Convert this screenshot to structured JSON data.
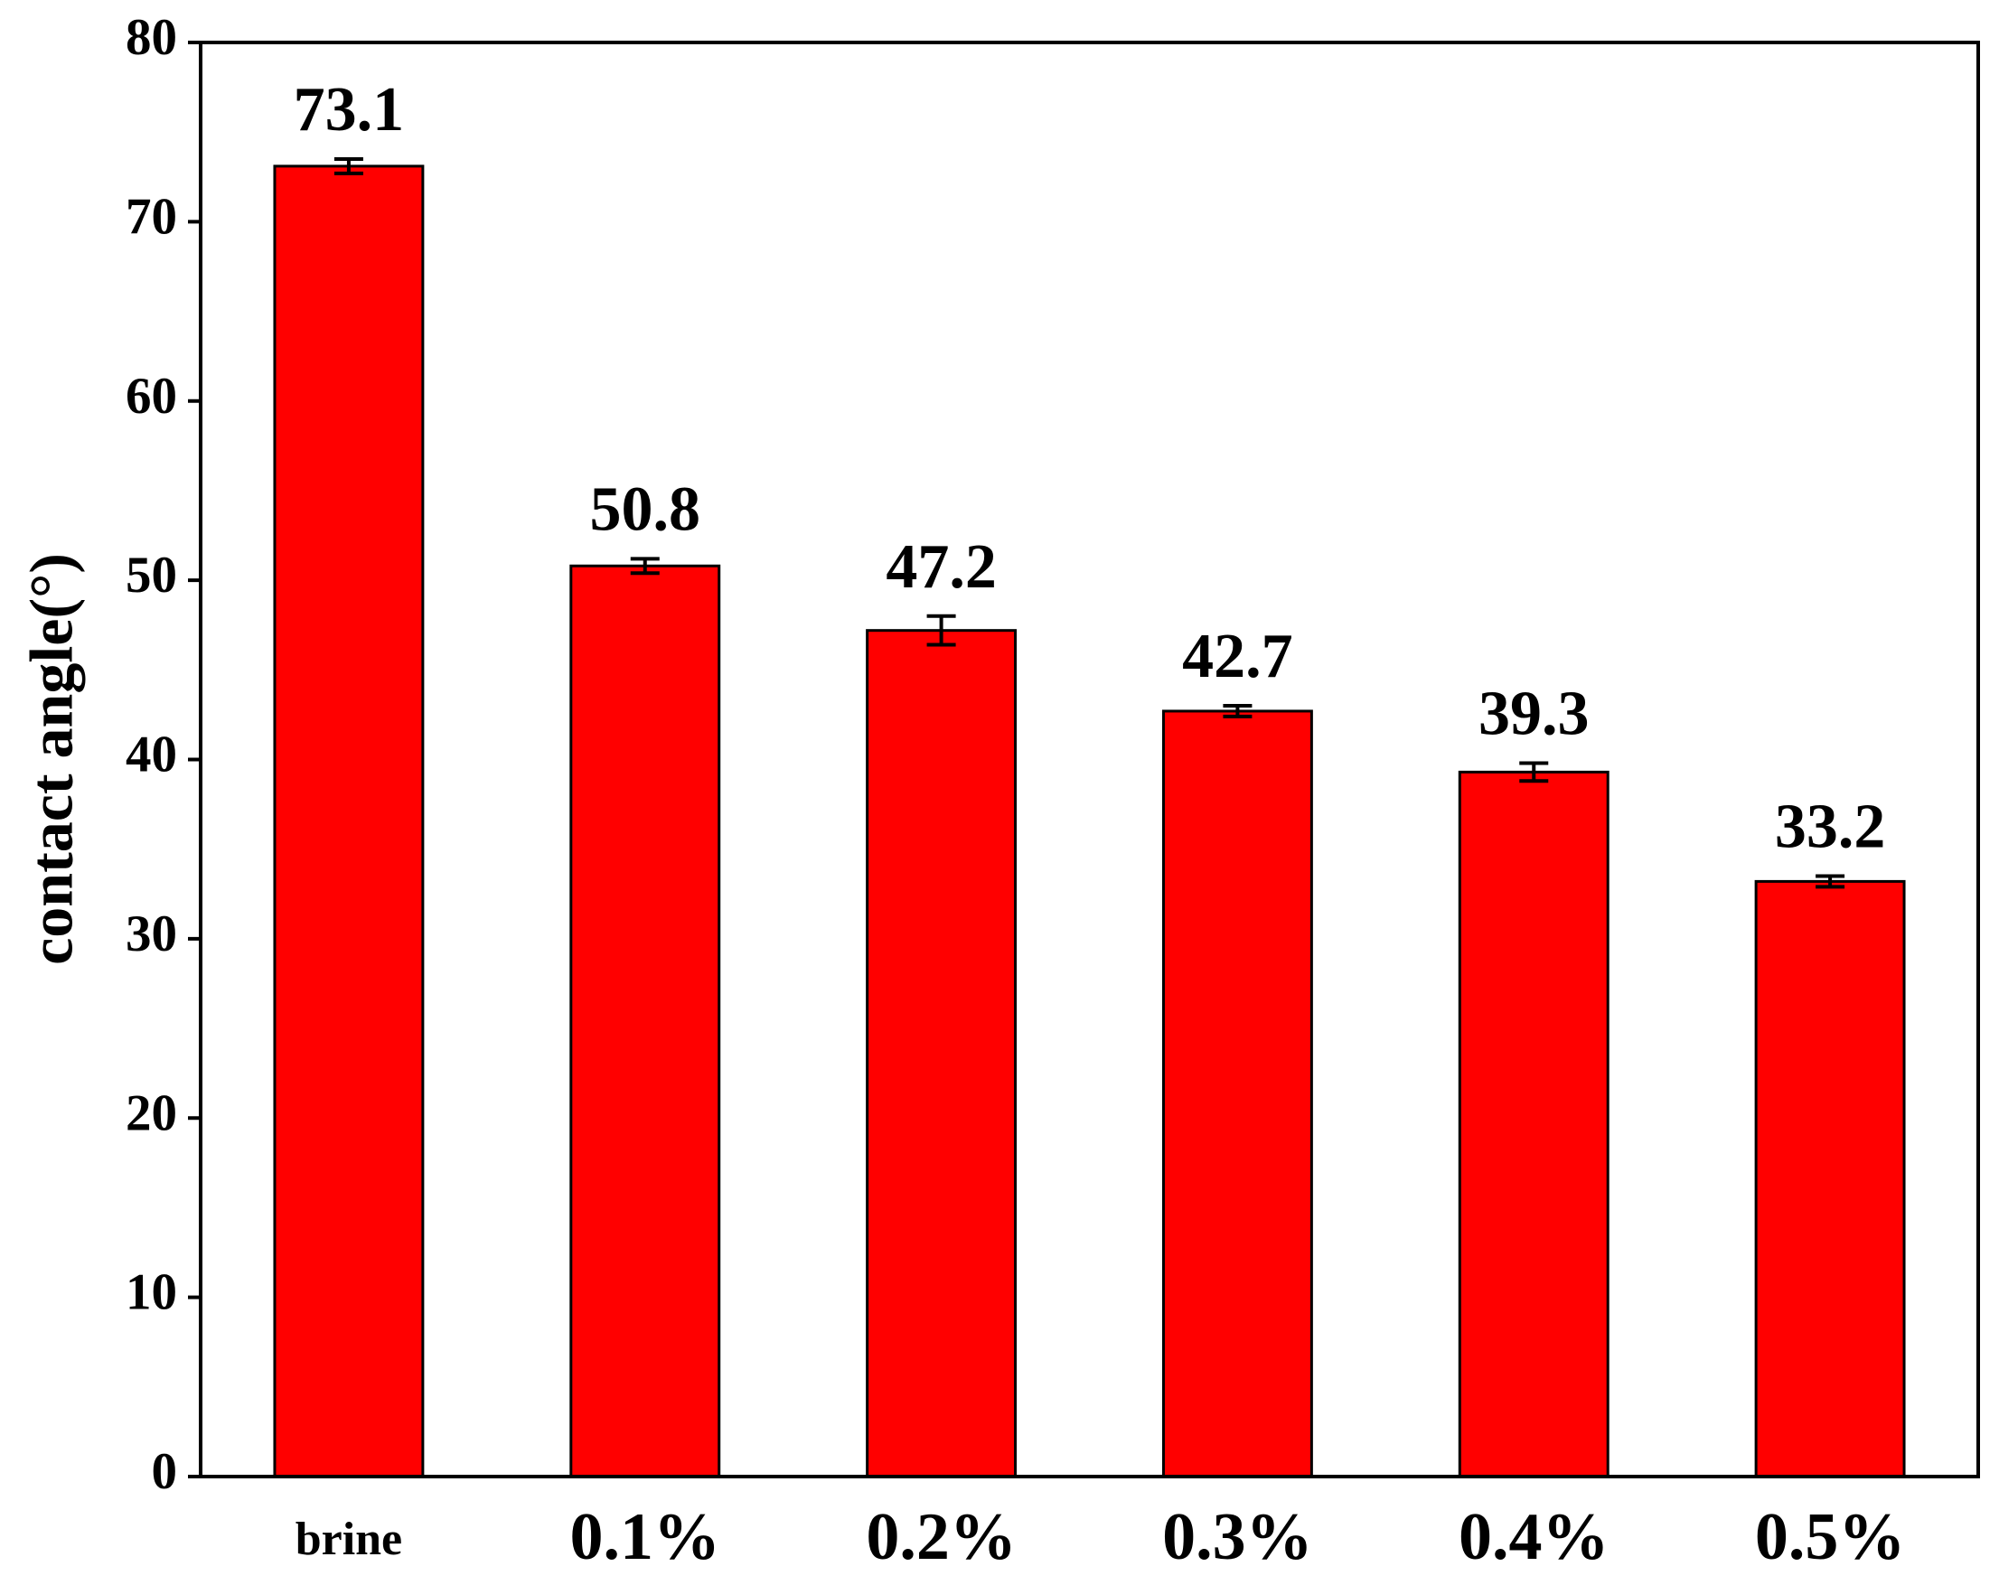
{
  "chart_data": {
    "type": "bar",
    "y_label": "contact angle(°)",
    "categories": [
      "brine",
      "0.1%",
      "0.2%",
      "0.3%",
      "0.4%",
      "0.5%"
    ],
    "values": [
      73.1,
      50.8,
      47.2,
      42.7,
      39.3,
      33.2
    ],
    "errors": [
      0.4,
      0.4,
      0.8,
      0.3,
      0.5,
      0.3
    ],
    "color": "#ff0000",
    "ylim": [
      0,
      80
    ],
    "yticks": [
      0,
      10,
      20,
      30,
      40,
      50,
      60,
      70,
      80
    ],
    "grid": false
  }
}
